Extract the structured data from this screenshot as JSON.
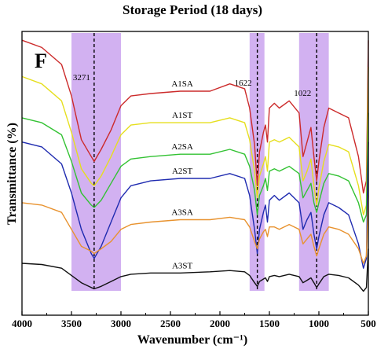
{
  "chart_data": {
    "type": "line",
    "title": "Storage Period (18 days)",
    "panel_label": "F",
    "xlabel": "Wavenumber (cm⁻¹)",
    "ylabel": "Transmittance (%)",
    "xlim": [
      4000,
      500
    ],
    "x_ticks": [
      4000,
      3500,
      3000,
      2500,
      2000,
      1500,
      1000,
      500
    ],
    "grid": false,
    "legend": "none",
    "bands": [
      {
        "from": 3500,
        "to": 3000,
        "color": "#cda8f0"
      },
      {
        "from": 1700,
        "to": 1550,
        "color": "#cda8f0"
      },
      {
        "from": 1200,
        "to": 900,
        "color": "#cda8f0"
      }
    ],
    "markers": [
      {
        "x": 3271,
        "label": "3271"
      },
      {
        "x": 1622,
        "label": "1622"
      },
      {
        "x": 1022,
        "label": "1022"
      }
    ],
    "series": [
      {
        "name": "A1SA",
        "color": "#cc2b2b",
        "points": [
          [
            4000,
            98
          ],
          [
            3800,
            95
          ],
          [
            3600,
            88
          ],
          [
            3500,
            75
          ],
          [
            3400,
            57
          ],
          [
            3300,
            50
          ],
          [
            3271,
            48
          ],
          [
            3200,
            53
          ],
          [
            3100,
            61
          ],
          [
            3000,
            71
          ],
          [
            2900,
            75
          ],
          [
            2700,
            76
          ],
          [
            2400,
            77
          ],
          [
            2100,
            77
          ],
          [
            1900,
            80
          ],
          [
            1750,
            78
          ],
          [
            1700,
            70
          ],
          [
            1650,
            55
          ],
          [
            1622,
            38
          ],
          [
            1600,
            52
          ],
          [
            1560,
            60
          ],
          [
            1540,
            63
          ],
          [
            1520,
            56
          ],
          [
            1500,
            70
          ],
          [
            1450,
            72
          ],
          [
            1400,
            70
          ],
          [
            1300,
            73
          ],
          [
            1200,
            68
          ],
          [
            1160,
            50
          ],
          [
            1120,
            56
          ],
          [
            1080,
            62
          ],
          [
            1050,
            50
          ],
          [
            1022,
            40
          ],
          [
            1000,
            48
          ],
          [
            950,
            62
          ],
          [
            900,
            70
          ],
          [
            800,
            68
          ],
          [
            700,
            66
          ],
          [
            600,
            50
          ],
          [
            550,
            35
          ],
          [
            520,
            40
          ],
          [
            500,
            98
          ]
        ]
      },
      {
        "name": "A1ST",
        "color": "#e6df1e",
        "points": [
          [
            4000,
            83
          ],
          [
            3800,
            80
          ],
          [
            3600,
            73
          ],
          [
            3500,
            60
          ],
          [
            3400,
            45
          ],
          [
            3300,
            39
          ],
          [
            3271,
            38
          ],
          [
            3200,
            42
          ],
          [
            3100,
            50
          ],
          [
            3000,
            59
          ],
          [
            2900,
            63
          ],
          [
            2700,
            64
          ],
          [
            2400,
            64
          ],
          [
            2100,
            64
          ],
          [
            1900,
            66
          ],
          [
            1750,
            64
          ],
          [
            1700,
            57
          ],
          [
            1650,
            44
          ],
          [
            1622,
            33
          ],
          [
            1600,
            42
          ],
          [
            1560,
            47
          ],
          [
            1540,
            50
          ],
          [
            1520,
            44
          ],
          [
            1500,
            56
          ],
          [
            1450,
            57
          ],
          [
            1400,
            56
          ],
          [
            1300,
            58
          ],
          [
            1200,
            54
          ],
          [
            1160,
            40
          ],
          [
            1120,
            44
          ],
          [
            1080,
            49
          ],
          [
            1050,
            38
          ],
          [
            1022,
            30
          ],
          [
            1000,
            37
          ],
          [
            950,
            48
          ],
          [
            900,
            55
          ],
          [
            800,
            54
          ],
          [
            700,
            52
          ],
          [
            600,
            38
          ],
          [
            550,
            26
          ],
          [
            520,
            30
          ],
          [
            500,
            87
          ]
        ]
      },
      {
        "name": "A2SA",
        "color": "#33c233",
        "points": [
          [
            4000,
            66
          ],
          [
            3800,
            64
          ],
          [
            3600,
            59
          ],
          [
            3500,
            48
          ],
          [
            3400,
            35
          ],
          [
            3300,
            30
          ],
          [
            3271,
            29
          ],
          [
            3200,
            32
          ],
          [
            3100,
            39
          ],
          [
            3000,
            46
          ],
          [
            2900,
            49
          ],
          [
            2700,
            50
          ],
          [
            2400,
            51
          ],
          [
            2100,
            51
          ],
          [
            1900,
            53
          ],
          [
            1750,
            51
          ],
          [
            1700,
            46
          ],
          [
            1650,
            36
          ],
          [
            1622,
            26
          ],
          [
            1600,
            34
          ],
          [
            1560,
            38
          ],
          [
            1540,
            41
          ],
          [
            1520,
            36
          ],
          [
            1500,
            44
          ],
          [
            1450,
            45
          ],
          [
            1400,
            44
          ],
          [
            1300,
            46
          ],
          [
            1200,
            43
          ],
          [
            1160,
            33
          ],
          [
            1120,
            36
          ],
          [
            1080,
            39
          ],
          [
            1050,
            31
          ],
          [
            1022,
            27
          ],
          [
            1000,
            31
          ],
          [
            950,
            39
          ],
          [
            900,
            43
          ],
          [
            800,
            42
          ],
          [
            700,
            40
          ],
          [
            600,
            31
          ],
          [
            550,
            23
          ],
          [
            520,
            26
          ],
          [
            500,
            68
          ]
        ]
      },
      {
        "name": "A2ST",
        "color": "#1f2bb0",
        "points": [
          [
            4000,
            56
          ],
          [
            3800,
            54
          ],
          [
            3600,
            47
          ],
          [
            3500,
            35
          ],
          [
            3400,
            20
          ],
          [
            3300,
            10
          ],
          [
            3271,
            8
          ],
          [
            3200,
            13
          ],
          [
            3100,
            23
          ],
          [
            3000,
            33
          ],
          [
            2900,
            38
          ],
          [
            2700,
            40
          ],
          [
            2400,
            41
          ],
          [
            2100,
            41
          ],
          [
            1900,
            43
          ],
          [
            1750,
            41
          ],
          [
            1700,
            34
          ],
          [
            1650,
            20
          ],
          [
            1622,
            10
          ],
          [
            1600,
            20
          ],
          [
            1560,
            27
          ],
          [
            1540,
            30
          ],
          [
            1520,
            23
          ],
          [
            1500,
            32
          ],
          [
            1450,
            34
          ],
          [
            1400,
            32
          ],
          [
            1300,
            35
          ],
          [
            1200,
            31
          ],
          [
            1160,
            20
          ],
          [
            1120,
            24
          ],
          [
            1080,
            27
          ],
          [
            1050,
            18
          ],
          [
            1022,
            12
          ],
          [
            1000,
            17
          ],
          [
            950,
            26
          ],
          [
            900,
            31
          ],
          [
            800,
            29
          ],
          [
            700,
            26
          ],
          [
            600,
            14
          ],
          [
            550,
            4
          ],
          [
            520,
            8
          ],
          [
            500,
            56
          ]
        ]
      },
      {
        "name": "A3SA",
        "color": "#e8922e",
        "points": [
          [
            4000,
            31
          ],
          [
            3800,
            30
          ],
          [
            3600,
            27
          ],
          [
            3500,
            20
          ],
          [
            3400,
            13
          ],
          [
            3300,
            11
          ],
          [
            3271,
            10
          ],
          [
            3200,
            12
          ],
          [
            3100,
            15
          ],
          [
            3000,
            20
          ],
          [
            2900,
            22
          ],
          [
            2700,
            23
          ],
          [
            2400,
            24
          ],
          [
            2100,
            24
          ],
          [
            1900,
            25
          ],
          [
            1750,
            24
          ],
          [
            1700,
            21
          ],
          [
            1650,
            15
          ],
          [
            1622,
            12
          ],
          [
            1600,
            16
          ],
          [
            1560,
            19
          ],
          [
            1540,
            20
          ],
          [
            1520,
            17
          ],
          [
            1500,
            21
          ],
          [
            1450,
            21
          ],
          [
            1400,
            20
          ],
          [
            1300,
            22
          ],
          [
            1200,
            20
          ],
          [
            1160,
            14
          ],
          [
            1120,
            16
          ],
          [
            1080,
            18
          ],
          [
            1050,
            13
          ],
          [
            1022,
            9
          ],
          [
            1000,
            12
          ],
          [
            950,
            18
          ],
          [
            900,
            21
          ],
          [
            800,
            20
          ],
          [
            700,
            18
          ],
          [
            600,
            12
          ],
          [
            550,
            6
          ],
          [
            520,
            9
          ],
          [
            500,
            34
          ]
        ]
      },
      {
        "name": "A3ST",
        "color": "#111111",
        "points": [
          [
            4000,
            6
          ],
          [
            3800,
            5.5
          ],
          [
            3600,
            4
          ],
          [
            3500,
            1
          ],
          [
            3400,
            -2
          ],
          [
            3300,
            -4
          ],
          [
            3271,
            -4.5
          ],
          [
            3200,
            -3.5
          ],
          [
            3100,
            -1.5
          ],
          [
            3000,
            0.5
          ],
          [
            2900,
            1.5
          ],
          [
            2700,
            2
          ],
          [
            2400,
            2
          ],
          [
            2100,
            2.5
          ],
          [
            1900,
            3
          ],
          [
            1750,
            2.5
          ],
          [
            1700,
            1
          ],
          [
            1650,
            -2
          ],
          [
            1622,
            -3.5
          ],
          [
            1600,
            -1.5
          ],
          [
            1560,
            -0.5
          ],
          [
            1540,
            0
          ],
          [
            1520,
            -1.5
          ],
          [
            1500,
            0.5
          ],
          [
            1450,
            1
          ],
          [
            1400,
            0.5
          ],
          [
            1300,
            1.5
          ],
          [
            1200,
            0.5
          ],
          [
            1160,
            -2
          ],
          [
            1120,
            -1
          ],
          [
            1080,
            0
          ],
          [
            1050,
            -2
          ],
          [
            1022,
            -4
          ],
          [
            1000,
            -2.5
          ],
          [
            950,
            0.5
          ],
          [
            900,
            1.5
          ],
          [
            800,
            1
          ],
          [
            700,
            0
          ],
          [
            600,
            -3
          ],
          [
            550,
            -5.5
          ],
          [
            520,
            -4
          ],
          [
            500,
            12
          ]
        ]
      }
    ]
  }
}
